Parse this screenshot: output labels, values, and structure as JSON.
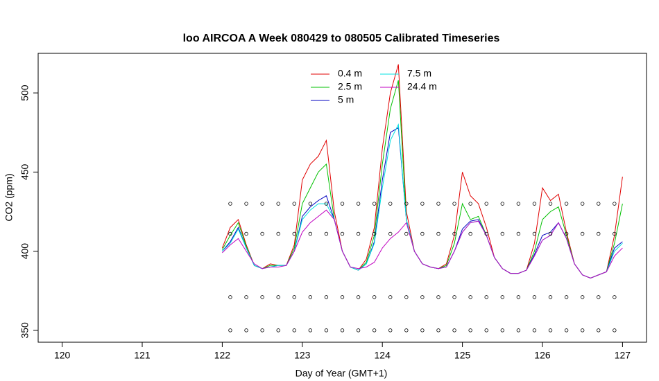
{
  "chart_data": {
    "type": "line",
    "title": "loo AIRCOA A  Week 080429 to 080505  Calibrated Timeseries",
    "x_label": "Day of Year (GMT+1)",
    "y_label": "CO2 (ppm)",
    "xlim": [
      119.7,
      127.3
    ],
    "xticks": [
      120,
      121,
      122,
      123,
      124,
      125,
      126,
      127
    ],
    "ylim": [
      342.5,
      525
    ],
    "yticks": [
      350,
      400,
      450,
      500
    ],
    "legend": "top-center",
    "x": [
      122.0,
      122.1,
      122.2,
      122.3,
      122.4,
      122.5,
      122.6,
      122.7,
      122.8,
      122.9,
      123.0,
      123.1,
      123.2,
      123.3,
      123.4,
      123.5,
      123.6,
      123.7,
      123.8,
      123.9,
      124.0,
      124.1,
      124.2,
      124.3,
      124.4,
      124.5,
      124.6,
      124.7,
      124.8,
      124.9,
      125.0,
      125.1,
      125.2,
      125.3,
      125.4,
      125.5,
      125.6,
      125.7,
      125.8,
      125.9,
      126.0,
      126.1,
      126.2,
      126.3,
      126.4,
      126.5,
      126.6,
      126.7,
      126.8,
      126.9,
      127.0
    ],
    "series": [
      {
        "name": "0.4 m",
        "color": "#e00000",
        "values": [
          402,
          415,
          420,
          404,
          391,
          389,
          392,
          391,
          391,
          404,
          445,
          455,
          460,
          470,
          425,
          400,
          390,
          388,
          395,
          415,
          465,
          500,
          518,
          425,
          400,
          392,
          390,
          389,
          392,
          410,
          450,
          435,
          430,
          415,
          396,
          389,
          386,
          386,
          388,
          405,
          440,
          432,
          436,
          412,
          392,
          385,
          383,
          385,
          387,
          410,
          447
        ]
      },
      {
        "name": "2.5 m",
        "color": "#00c000",
        "values": [
          401,
          410,
          418,
          403,
          391,
          389,
          391,
          391,
          391,
          402,
          430,
          440,
          450,
          455,
          420,
          400,
          390,
          388,
          393,
          410,
          455,
          490,
          508,
          420,
          400,
          392,
          390,
          389,
          391,
          405,
          430,
          420,
          422,
          410,
          396,
          389,
          386,
          386,
          388,
          400,
          420,
          425,
          428,
          410,
          392,
          385,
          383,
          385,
          387,
          405,
          430
        ]
      },
      {
        "name": "5 m",
        "color": "#0000c0",
        "values": [
          400,
          406,
          415,
          402,
          391,
          389,
          390,
          391,
          391,
          400,
          422,
          428,
          432,
          435,
          420,
          400,
          390,
          388,
          392,
          406,
          445,
          475,
          478,
          420,
          400,
          392,
          390,
          389,
          390,
          400,
          414,
          419,
          420,
          410,
          396,
          389,
          386,
          386,
          388,
          398,
          410,
          412,
          418,
          408,
          392,
          385,
          383,
          385,
          387,
          402,
          406
        ]
      },
      {
        "name": "7.5 m",
        "color": "#00e0e0",
        "values": [
          400,
          405,
          414,
          402,
          391,
          389,
          390,
          391,
          391,
          400,
          420,
          426,
          430,
          430,
          420,
          400,
          390,
          388,
          392,
          405,
          440,
          470,
          480,
          420,
          400,
          392,
          390,
          389,
          390,
          400,
          412,
          418,
          419,
          410,
          396,
          389,
          386,
          386,
          388,
          397,
          407,
          410,
          418,
          408,
          392,
          385,
          383,
          385,
          387,
          400,
          405
        ]
      },
      {
        "name": "24.4 m",
        "color": "#c000c0",
        "values": [
          399,
          404,
          408,
          400,
          392,
          389,
          390,
          390,
          391,
          400,
          412,
          418,
          422,
          426,
          420,
          400,
          390,
          389,
          390,
          393,
          402,
          408,
          412,
          418,
          400,
          392,
          390,
          389,
          390,
          400,
          412,
          418,
          419,
          410,
          396,
          389,
          386,
          386,
          388,
          397,
          407,
          410,
          418,
          408,
          392,
          385,
          383,
          385,
          387,
          397,
          402
        ]
      }
    ],
    "standards": {
      "x": [
        122.1,
        122.3,
        122.5,
        122.7,
        122.9,
        123.1,
        123.3,
        123.5,
        123.7,
        123.9,
        124.1,
        124.3,
        124.5,
        124.7,
        124.9,
        125.1,
        125.3,
        125.5,
        125.7,
        125.9,
        126.1,
        126.3,
        126.5,
        126.7,
        126.9
      ],
      "levels": [
        350,
        371,
        411,
        430
      ]
    }
  }
}
